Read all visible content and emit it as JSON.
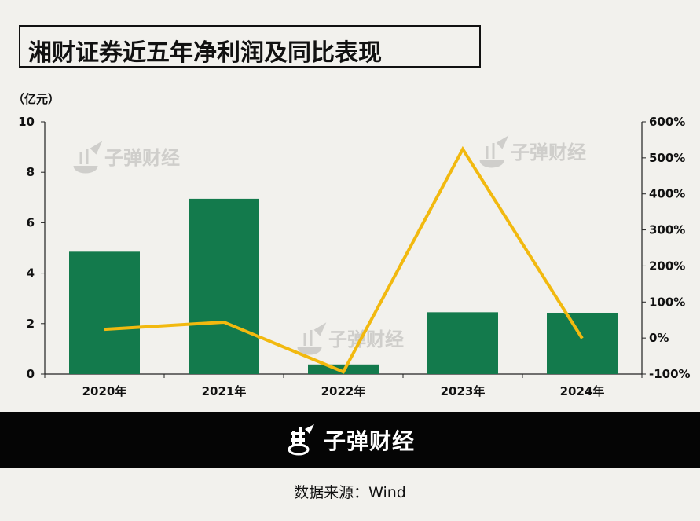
{
  "title": "湘财证券近五年净利润及同比表现",
  "watermark": "子弹财经",
  "footer": {
    "brand": "子弹财经",
    "source": "数据来源：Wind"
  },
  "chart_data": {
    "type": "bar",
    "categories": [
      "2020年",
      "2021年",
      "2022年",
      "2023年",
      "2024年"
    ],
    "series": [
      {
        "type": "bar",
        "axis": "left",
        "color": "#137a4c",
        "values": [
          4.85,
          6.95,
          0.38,
          2.45,
          2.43
        ]
      },
      {
        "type": "line",
        "axis": "right",
        "color": "#f2b90f",
        "values": [
          0.24,
          0.44,
          -0.94,
          5.24,
          -0.01
        ]
      }
    ],
    "y_left": {
      "unit": "（亿元）",
      "ylim": [
        0,
        10
      ],
      "ticks": [
        0,
        2,
        4,
        6,
        8,
        10
      ],
      "tick_labels": [
        "0",
        "2",
        "4",
        "6",
        "8",
        "10"
      ]
    },
    "y_right": {
      "ylim": [
        -1,
        6
      ],
      "ticks": [
        -1,
        0,
        1,
        2,
        3,
        4,
        5,
        6
      ],
      "tick_labels": [
        "-100%",
        "0%",
        "100%",
        "200%",
        "300%",
        "400%",
        "500%",
        "600%"
      ]
    },
    "grid": false,
    "legend": "none"
  }
}
